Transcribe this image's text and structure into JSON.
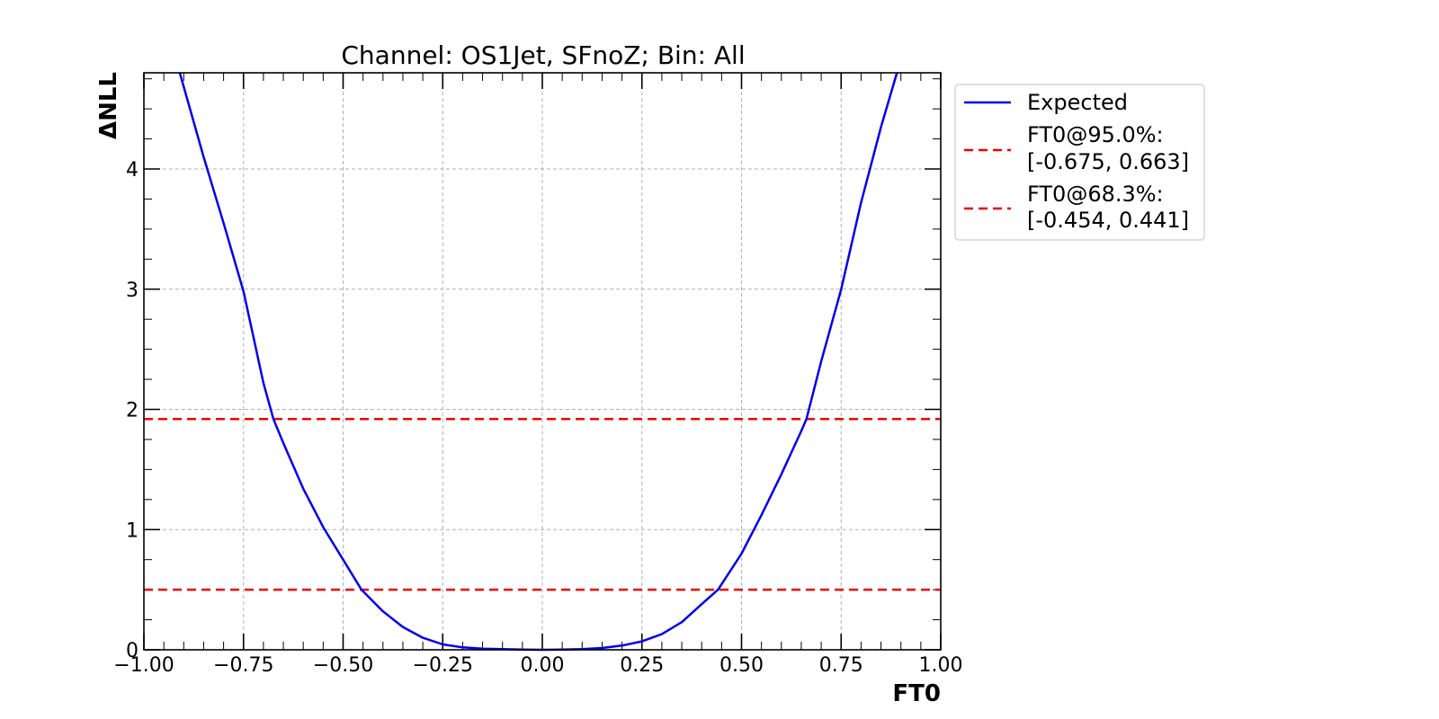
{
  "chart_data": {
    "type": "line",
    "title": "Channel: OS1Jet, SFnoZ; Bin: All",
    "xlabel": "FT0",
    "ylabel": "ΔNLL",
    "xlim": [
      -1.0,
      1.0
    ],
    "ylim": [
      0,
      4.8
    ],
    "grid": true,
    "legend_position": "outside-top-right",
    "x_ticks": [
      "−1.00",
      "−0.75",
      "−0.50",
      "−0.25",
      "0.00",
      "0.25",
      "0.50",
      "0.75",
      "1.00"
    ],
    "x_tick_values": [
      -1.0,
      -0.75,
      -0.5,
      -0.25,
      0.0,
      0.25,
      0.5,
      0.75,
      1.0
    ],
    "y_ticks": [
      "0",
      "1",
      "2",
      "3",
      "4"
    ],
    "y_tick_values": [
      0,
      1,
      2,
      3,
      4
    ],
    "series": [
      {
        "name": "Expected",
        "color": "#0000ee",
        "style": "solid",
        "x": [
          -0.91,
          -0.85,
          -0.8,
          -0.75,
          -0.7,
          -0.675,
          -0.65,
          -0.6,
          -0.55,
          -0.5,
          -0.454,
          -0.4,
          -0.35,
          -0.3,
          -0.25,
          -0.2,
          -0.15,
          -0.1,
          -0.05,
          0.0,
          0.05,
          0.1,
          0.15,
          0.2,
          0.25,
          0.3,
          0.35,
          0.4,
          0.441,
          0.5,
          0.55,
          0.6,
          0.65,
          0.663,
          0.7,
          0.75,
          0.8,
          0.85,
          0.89
        ],
        "y": [
          4.8,
          4.1,
          3.55,
          2.98,
          2.22,
          1.92,
          1.72,
          1.34,
          1.02,
          0.75,
          0.5,
          0.32,
          0.19,
          0.1,
          0.045,
          0.02,
          0.01,
          0.005,
          0.002,
          0.0,
          0.002,
          0.006,
          0.015,
          0.035,
          0.07,
          0.13,
          0.23,
          0.38,
          0.5,
          0.8,
          1.12,
          1.46,
          1.82,
          1.92,
          2.4,
          3.0,
          3.72,
          4.35,
          4.8
        ]
      }
    ],
    "reference_lines": [
      {
        "name": "FT0@95.0%:",
        "interval": "[-0.675, 0.663]",
        "y": 1.92,
        "color": "#ee0000",
        "style": "dashed"
      },
      {
        "name": "FT0@68.3%:",
        "interval": "[-0.454, 0.441]",
        "y": 0.5,
        "color": "#ee0000",
        "style": "dashed"
      }
    ]
  }
}
